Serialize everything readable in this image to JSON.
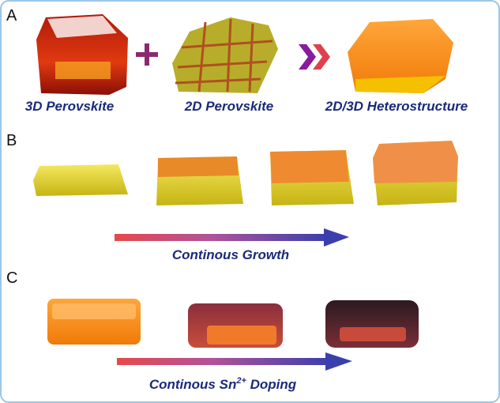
{
  "panels": [
    {
      "label": "A",
      "captions": [
        "3D Perovskite",
        "2D Perovskite",
        "2D/3D Heterostructure"
      ]
    },
    {
      "label": "B",
      "arrow_caption": "Continous Growth"
    },
    {
      "label": "C",
      "arrow_caption": {
        "text": "Continous Sn",
        "superscript": "2+",
        "suffix": " Doping"
      }
    }
  ]
}
